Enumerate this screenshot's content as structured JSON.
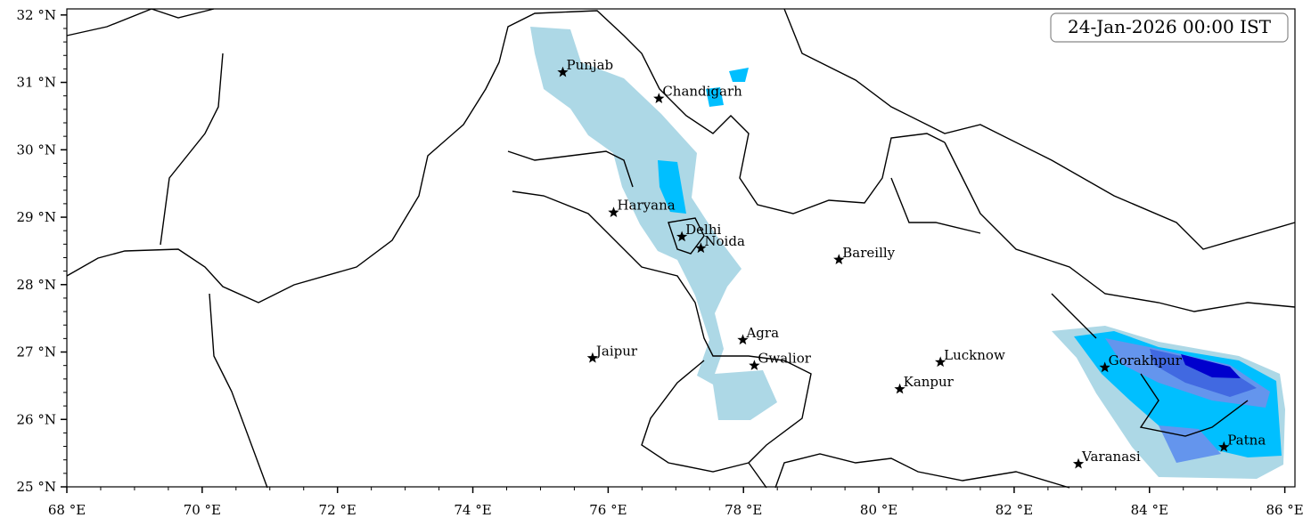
{
  "title": "24-Jan-2026 00:00 IST",
  "xlim": [
    68,
    86.15
  ],
  "ylim": [
    25,
    32.09
  ],
  "xticks": [
    {
      "value": 68,
      "label": "68 °E"
    },
    {
      "value": 70,
      "label": "70 °E"
    },
    {
      "value": 72,
      "label": "72 °E"
    },
    {
      "value": 74,
      "label": "74 °E"
    },
    {
      "value": 76,
      "label": "76 °E"
    },
    {
      "value": 78,
      "label": "78 °E"
    },
    {
      "value": 80,
      "label": "80 °E"
    },
    {
      "value": 82,
      "label": "82 °E"
    },
    {
      "value": 84,
      "label": "84 °E"
    },
    {
      "value": 86,
      "label": "86 °E"
    }
  ],
  "yticks": [
    {
      "value": 25,
      "label": "25 °N"
    },
    {
      "value": 26,
      "label": "26 °N"
    },
    {
      "value": 27,
      "label": "27 °N"
    },
    {
      "value": 28,
      "label": "28 °N"
    },
    {
      "value": 29,
      "label": "29 °N"
    },
    {
      "value": 30,
      "label": "30 °N"
    },
    {
      "value": 31,
      "label": "31 °N"
    },
    {
      "value": 32,
      "label": "32 °N"
    }
  ],
  "cities": [
    {
      "name": "Punjab",
      "lon": 75.33,
      "lat": 31.15
    },
    {
      "name": "Chandigarh",
      "lon": 76.75,
      "lat": 30.76
    },
    {
      "name": "Haryana",
      "lon": 76.08,
      "lat": 29.07
    },
    {
      "name": "Delhi",
      "lon": 77.09,
      "lat": 28.71
    },
    {
      "name": "Noida",
      "lon": 77.37,
      "lat": 28.54
    },
    {
      "name": "Bareilly",
      "lon": 79.41,
      "lat": 28.37
    },
    {
      "name": "Agra",
      "lon": 77.99,
      "lat": 27.18
    },
    {
      "name": "Jaipur",
      "lon": 75.77,
      "lat": 26.91
    },
    {
      "name": "Gwalior",
      "lon": 78.16,
      "lat": 26.8
    },
    {
      "name": "Lucknow",
      "lon": 80.91,
      "lat": 26.85
    },
    {
      "name": "Kanpur",
      "lon": 80.31,
      "lat": 26.45
    },
    {
      "name": "Gorakhpur",
      "lon": 83.34,
      "lat": 26.77
    },
    {
      "name": "Varanasi",
      "lon": 82.95,
      "lat": 25.34
    },
    {
      "name": "Patna",
      "lon": 85.1,
      "lat": 25.59
    }
  ]
}
